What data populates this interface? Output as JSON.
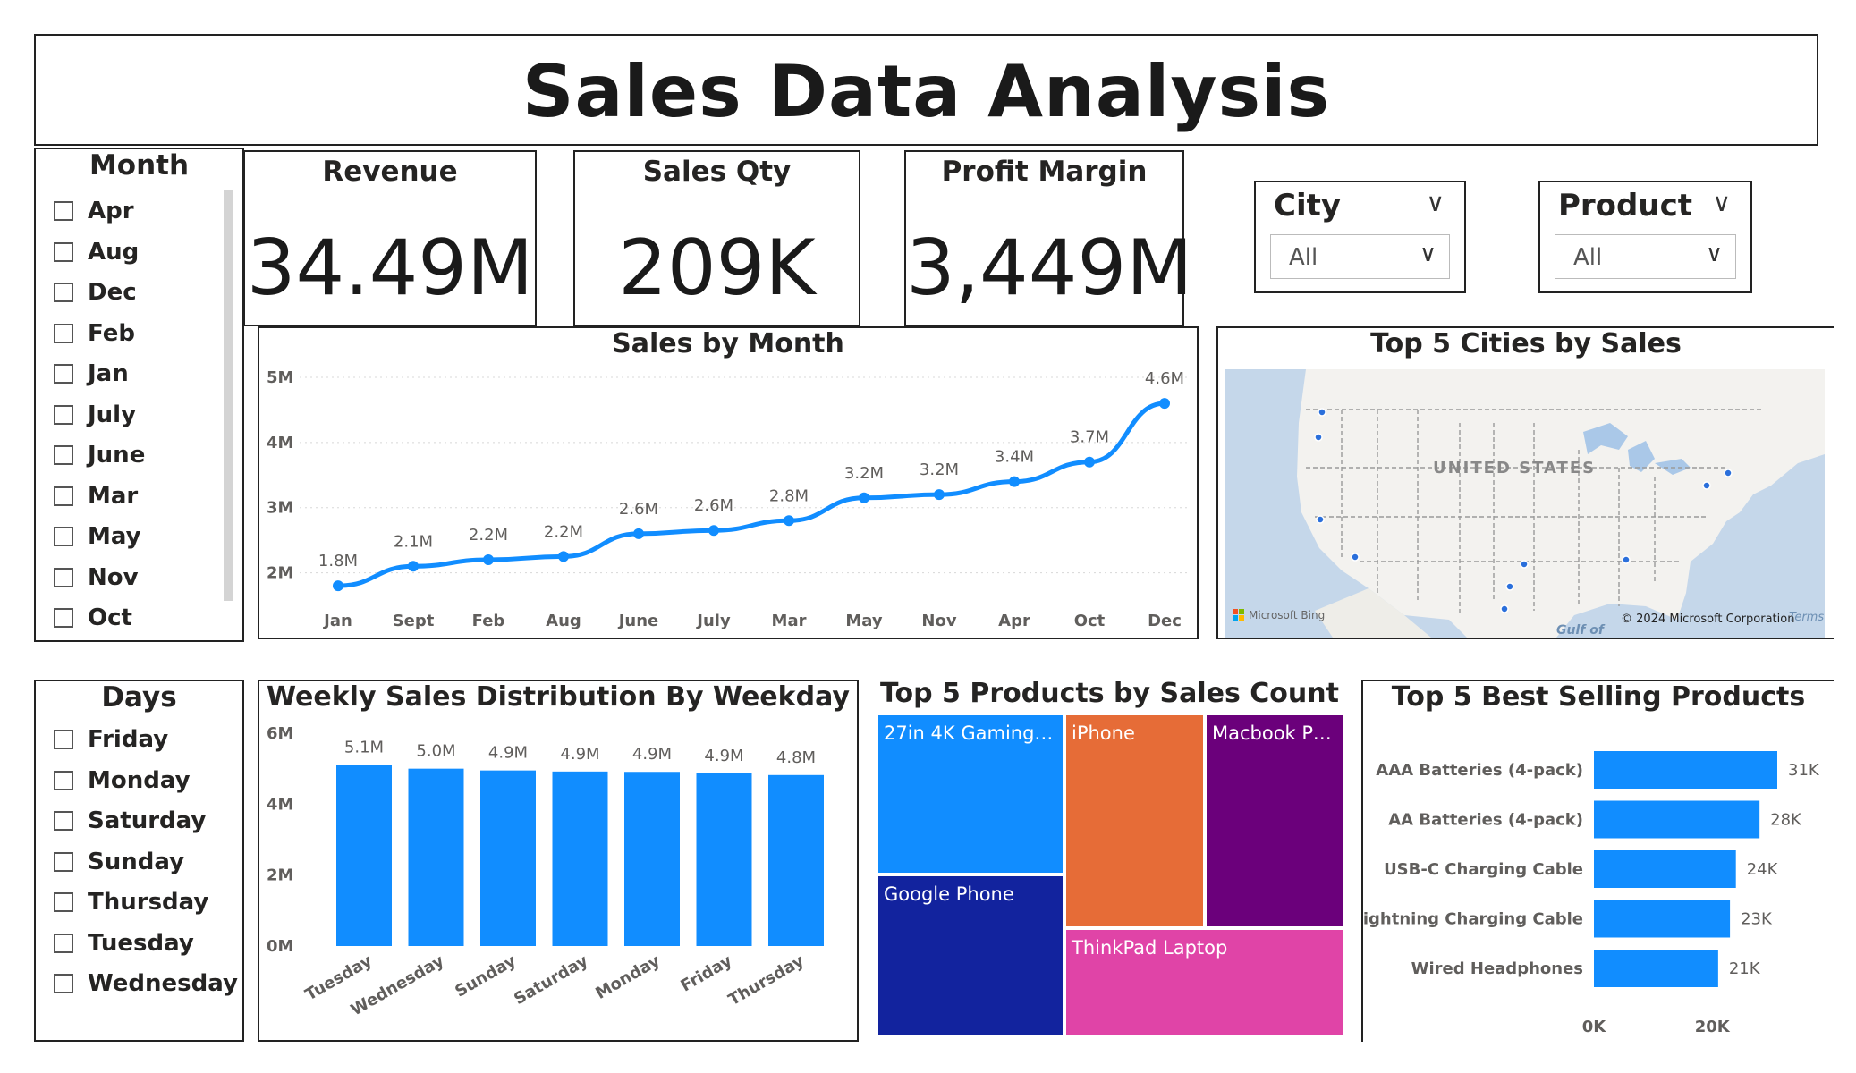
{
  "title": "Sales Data Analysis",
  "month_slicer": {
    "title": "Month",
    "items": [
      "Apr",
      "Aug",
      "Dec",
      "Feb",
      "Jan",
      "July",
      "June",
      "Mar",
      "May",
      "Nov",
      "Oct"
    ]
  },
  "days_slicer": {
    "title": "Days",
    "items": [
      "Friday",
      "Monday",
      "Saturday",
      "Sunday",
      "Thursday",
      "Tuesday",
      "Wednesday"
    ]
  },
  "kpis": {
    "revenue": {
      "label": "Revenue",
      "value": "34.49M"
    },
    "sales_qty": {
      "label": "Sales Qty",
      "value": "209K"
    },
    "profit_margin": {
      "label": "Profit Margin",
      "value": "3,449M"
    }
  },
  "filters": {
    "city": {
      "label": "City",
      "value": "All"
    },
    "product": {
      "label": "Product",
      "value": "All"
    }
  },
  "map": {
    "title": "Top 5 Cities by Sales",
    "country_label": "UNITED STATES",
    "gulf_label": "Gulf of",
    "bing_label": "Microsoft Bing",
    "copyright": "© 2024 Microsoft Corporation",
    "terms": "Terms",
    "point_color": "#118DFF"
  },
  "chart_data": [
    {
      "type": "line",
      "title": "Sales by Month",
      "categories": [
        "Jan",
        "Sept",
        "Feb",
        "Aug",
        "June",
        "July",
        "Mar",
        "May",
        "Nov",
        "Apr",
        "Oct",
        "Dec"
      ],
      "values": [
        1.8,
        2.1,
        2.2,
        2.25,
        2.6,
        2.65,
        2.8,
        3.15,
        3.2,
        3.4,
        3.7,
        4.6
      ],
      "data_labels": [
        "1.8M",
        "2.1M",
        "2.2M",
        "2.2M",
        "2.6M",
        "2.6M",
        "2.8M",
        "3.2M",
        "3.2M",
        "3.4M",
        "3.7M",
        "4.6M"
      ],
      "yticks": [
        "2M",
        "3M",
        "4M",
        "5M"
      ],
      "ylim": [
        1.5,
        5
      ],
      "color": "#118DFF",
      "grid": true
    },
    {
      "type": "bar",
      "title": "Weekly Sales Distribution By Weekday",
      "categories": [
        "Tuesday",
        "Wednesday",
        "Sunday",
        "Saturday",
        "Monday",
        "Friday",
        "Thursday"
      ],
      "values": [
        5.1,
        5.0,
        4.95,
        4.92,
        4.91,
        4.87,
        4.82
      ],
      "data_labels": [
        "5.1M",
        "5.0M",
        "4.9M",
        "4.9M",
        "4.9M",
        "4.9M",
        "4.8M"
      ],
      "yticks": [
        "0M",
        "2M",
        "4M",
        "6M"
      ],
      "ylim": [
        0,
        6
      ],
      "color": "#118DFF"
    },
    {
      "type": "treemap",
      "title": "Top 5 Products by Sales Count",
      "labels": [
        "27in 4K Gaming M...",
        "iPhone",
        "Macbook Pro...",
        "Google Phone",
        "ThinkPad Laptop"
      ],
      "colors": [
        "#118DFF",
        "#E66C37",
        "#6B007B",
        "#12239E",
        "#E044A7"
      ]
    },
    {
      "type": "bar",
      "orientation": "horizontal",
      "title": "Top 5 Best Selling Products",
      "categories": [
        "AAA Batteries (4-pack)",
        "AA Batteries (4-pack)",
        "USB-C Charging Cable",
        "Lightning Charging Cable",
        "Wired Headphones"
      ],
      "values": [
        31,
        28,
        24,
        23,
        21
      ],
      "data_labels": [
        "31K",
        "28K",
        "24K",
        "23K",
        "21K"
      ],
      "xticks": [
        "0K",
        "20K"
      ],
      "xlim": [
        0,
        32
      ],
      "color": "#118DFF"
    }
  ]
}
